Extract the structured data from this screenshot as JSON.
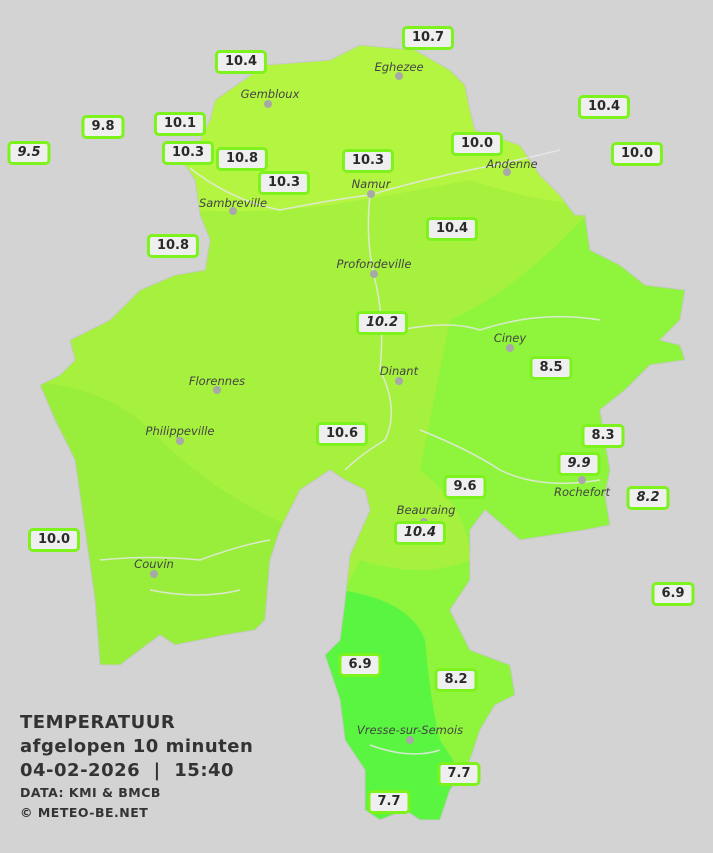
{
  "legend": {
    "title": "TEMPERATUUR",
    "period": "afgelopen 10 minuten",
    "datetime": "04-02-2026  |  15:40",
    "source": "DATA: KMI & BMCB",
    "copyright": "© METEO-BE.NET"
  },
  "colors": {
    "background": "#d3d3d3",
    "zone_warm": "#b4f542",
    "zone_mid": "#a2f23e",
    "zone_cool": "#8ef53c",
    "zone_cold": "#5af540",
    "label_border": "#7ef21c"
  },
  "cities": [
    "Eghezee",
    "Gembloux",
    "Andenne",
    "Namur",
    "Sambreville",
    "Profondeville",
    "Ciney",
    "Dinant",
    "Florennes",
    "Philippeville",
    "Rochefort",
    "Beauraing",
    "Couvin",
    "Vresse-sur-Semois"
  ],
  "stations": [
    {
      "value": "10.7",
      "italic": false
    },
    {
      "value": "10.4",
      "italic": false
    },
    {
      "value": "10.4",
      "italic": false
    },
    {
      "value": "9.8",
      "italic": false
    },
    {
      "value": "10.1",
      "italic": false
    },
    {
      "value": "9.5",
      "italic": true
    },
    {
      "value": "10.0",
      "italic": false
    },
    {
      "value": "10.0",
      "italic": false
    },
    {
      "value": "10.3",
      "italic": false
    },
    {
      "value": "10.8",
      "italic": false
    },
    {
      "value": "10.3",
      "italic": false
    },
    {
      "value": "10.3",
      "italic": false
    },
    {
      "value": "10.8",
      "italic": false
    },
    {
      "value": "10.4",
      "italic": false
    },
    {
      "value": "10.2",
      "italic": true
    },
    {
      "value": "8.5",
      "italic": false
    },
    {
      "value": "10.6",
      "italic": false
    },
    {
      "value": "8.3",
      "italic": false
    },
    {
      "value": "9.9",
      "italic": true
    },
    {
      "value": "9.6",
      "italic": false
    },
    {
      "value": "8.2",
      "italic": true
    },
    {
      "value": "10.4",
      "italic": true
    },
    {
      "value": "10.0",
      "italic": false
    },
    {
      "value": "6.9",
      "italic": false
    },
    {
      "value": "6.9",
      "italic": false
    },
    {
      "value": "8.2",
      "italic": false
    },
    {
      "value": "7.7",
      "italic": false
    },
    {
      "value": "7.7",
      "italic": false
    }
  ]
}
